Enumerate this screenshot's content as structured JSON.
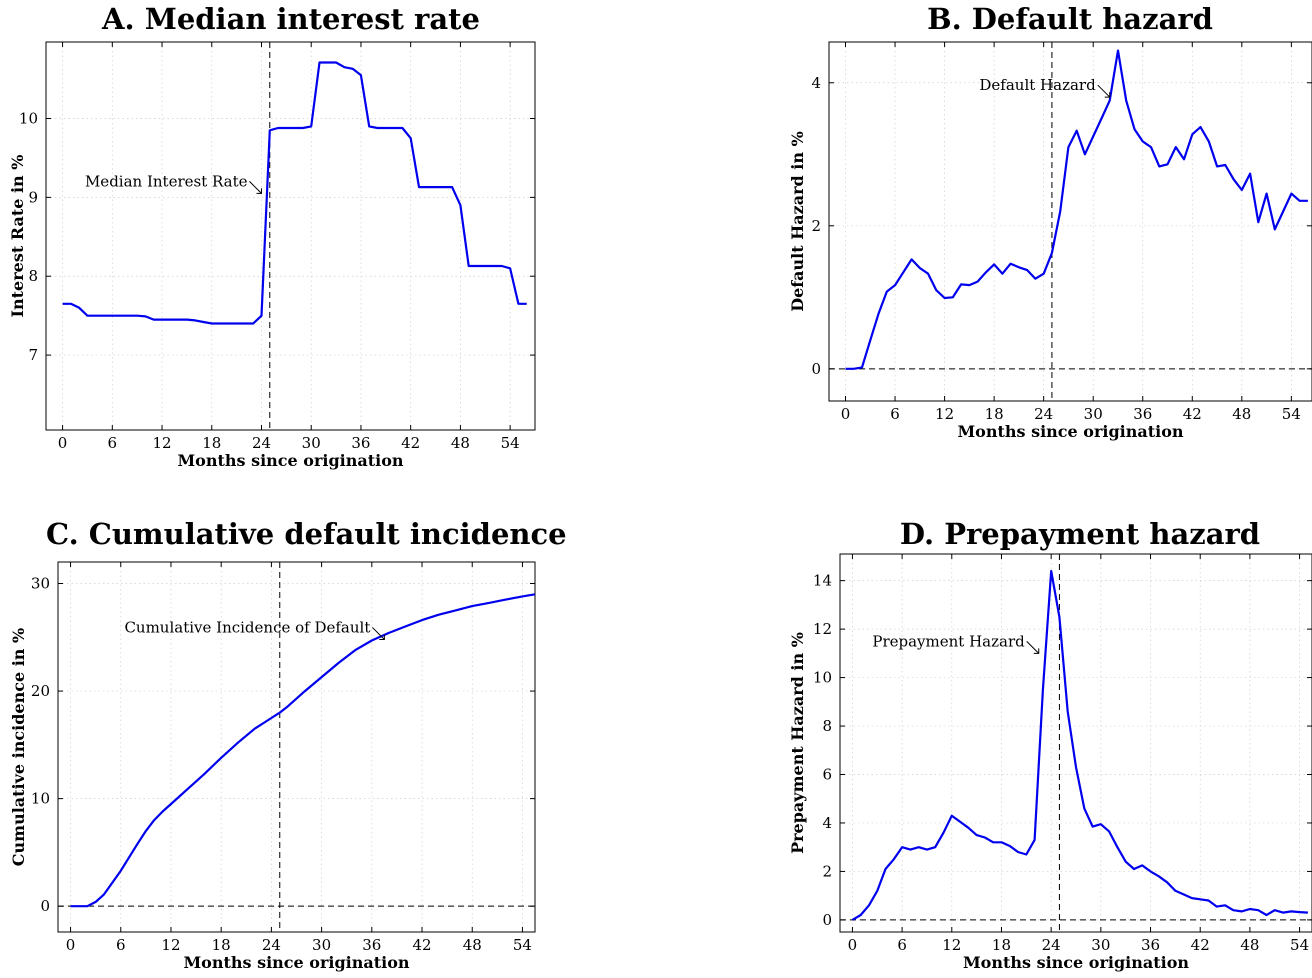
{
  "chart_data": [
    {
      "id": "A",
      "type": "line",
      "title": "A. Median interest rate",
      "xlabel": "Months since origination",
      "ylabel": "Interest Rate in %",
      "xticks": [
        0,
        6,
        12,
        18,
        24,
        30,
        36,
        42,
        48,
        54
      ],
      "yticks": [
        7,
        8,
        9,
        10
      ],
      "xlim": [
        -2,
        57
      ],
      "ylim": [
        6.05,
        10.97
      ],
      "grid": true,
      "vline": 25,
      "zero_line": false,
      "annotation": {
        "text": "Median Interest Rate",
        "target": [
          24.0,
          9.05
        ]
      },
      "series": [
        {
          "color": "#0000ee",
          "x": [
            0,
            1,
            2,
            3,
            4,
            5,
            6,
            7,
            8,
            9,
            10,
            11,
            12,
            13,
            14,
            15,
            16,
            17,
            18,
            19,
            20,
            21,
            22,
            23,
            24,
            25,
            26,
            27,
            28,
            29,
            30,
            31,
            32,
            33,
            34,
            35,
            36,
            37,
            38,
            39,
            40,
            41,
            42,
            43,
            44,
            45,
            46,
            47,
            48,
            49,
            50,
            51,
            52,
            53,
            54,
            55,
            56
          ],
          "y": [
            7.65,
            7.65,
            7.6,
            7.5,
            7.5,
            7.5,
            7.5,
            7.5,
            7.5,
            7.5,
            7.49,
            7.45,
            7.45,
            7.45,
            7.45,
            7.45,
            7.44,
            7.42,
            7.4,
            7.4,
            7.4,
            7.4,
            7.4,
            7.4,
            7.5,
            9.85,
            9.88,
            9.88,
            9.88,
            9.88,
            9.9,
            10.71,
            10.71,
            10.71,
            10.65,
            10.63,
            10.55,
            9.9,
            9.88,
            9.88,
            9.88,
            9.88,
            9.75,
            9.13,
            9.13,
            9.13,
            9.13,
            9.13,
            8.9,
            8.13,
            8.13,
            8.13,
            8.13,
            8.13,
            8.1,
            7.65,
            7.65
          ]
        }
      ]
    },
    {
      "id": "B",
      "type": "line",
      "title": "B. Default hazard",
      "xlabel": "Months since origination",
      "ylabel": "Default Hazard in %",
      "xticks": [
        0,
        6,
        12,
        18,
        24,
        30,
        36,
        42,
        48,
        54
      ],
      "yticks": [
        0,
        2,
        4
      ],
      "xlim": [
        -2,
        56.5
      ],
      "ylim": [
        -0.45,
        4.57
      ],
      "grid": true,
      "vline": 25,
      "zero_line": true,
      "annotation": {
        "text": "Default Hazard",
        "target": [
          32.0,
          3.8
        ]
      },
      "series": [
        {
          "color": "#0000ee",
          "x": [
            0,
            1,
            2,
            3,
            4,
            5,
            6,
            7,
            8,
            9,
            10,
            11,
            12,
            13,
            14,
            15,
            16,
            17,
            18,
            19,
            20,
            21,
            22,
            23,
            24,
            25,
            26,
            27,
            28,
            29,
            30,
            31,
            32,
            33,
            34,
            35,
            36,
            37,
            38,
            39,
            40,
            41,
            42,
            43,
            44,
            45,
            46,
            47,
            48,
            49,
            50,
            51,
            52,
            53,
            54,
            55,
            56
          ],
          "y": [
            0,
            0,
            0.02,
            0.4,
            0.77,
            1.08,
            1.17,
            1.35,
            1.53,
            1.41,
            1.33,
            1.1,
            0.99,
            1.0,
            1.18,
            1.17,
            1.22,
            1.35,
            1.46,
            1.33,
            1.47,
            1.42,
            1.38,
            1.26,
            1.33,
            1.62,
            2.2,
            3.1,
            3.33,
            3.0,
            3.25,
            3.5,
            3.75,
            4.45,
            3.75,
            3.35,
            3.18,
            3.1,
            2.83,
            2.86,
            3.1,
            2.93,
            3.28,
            3.38,
            3.18,
            2.83,
            2.85,
            2.65,
            2.5,
            2.73,
            2.05,
            2.45,
            1.95,
            2.2,
            2.45,
            2.35,
            2.35
          ]
        }
      ]
    },
    {
      "id": "C",
      "type": "line",
      "title": "C. Cumulative default incidence",
      "xlabel": "Months since origination",
      "ylabel": "Cumulative incidence in %",
      "xticks": [
        0,
        6,
        12,
        18,
        24,
        30,
        36,
        42,
        48,
        54
      ],
      "yticks": [
        0,
        10,
        20,
        30
      ],
      "xlim": [
        -1.5,
        55.5
      ],
      "ylim": [
        -2.4,
        32.0
      ],
      "grid": true,
      "vline": 25,
      "zero_line": true,
      "annotation": {
        "text": "Cumulative Incidence of Default",
        "target": [
          37.5,
          24.8
        ]
      },
      "series": [
        {
          "color": "#0000ee",
          "x": [
            0,
            2,
            3,
            4,
            6,
            8,
            9,
            10,
            11,
            12,
            14,
            16,
            18,
            20,
            22,
            24,
            25,
            26,
            28,
            30,
            32,
            34,
            36,
            38,
            40,
            42,
            44,
            46,
            48,
            50,
            52,
            54,
            55.5
          ],
          "y": [
            0,
            0,
            0.4,
            1.1,
            3.3,
            5.8,
            7.0,
            8.0,
            8.8,
            9.5,
            10.9,
            12.3,
            13.8,
            15.2,
            16.5,
            17.5,
            18.0,
            18.6,
            20.0,
            21.3,
            22.6,
            23.8,
            24.7,
            25.4,
            26.0,
            26.6,
            27.1,
            27.5,
            27.9,
            28.2,
            28.5,
            28.8,
            29.0
          ]
        }
      ]
    },
    {
      "id": "D",
      "type": "line",
      "title": "D. Prepayment hazard",
      "xlabel": "Months since origination",
      "ylabel": "Prepayment Hazard in %",
      "xticks": [
        0,
        6,
        12,
        18,
        24,
        30,
        36,
        42,
        48,
        54
      ],
      "yticks": [
        0,
        2,
        4,
        6,
        8,
        10,
        12,
        14
      ],
      "xlim": [
        -1.5,
        55.5
      ],
      "ylim": [
        -0.5,
        15.1
      ],
      "grid": true,
      "vline": 25,
      "zero_line": true,
      "annotation": {
        "text": "Prepayment Hazard",
        "target": [
          22.5,
          11.0
        ]
      },
      "series": [
        {
          "color": "#0000ee",
          "x": [
            0,
            1,
            2,
            3,
            4,
            5,
            6,
            7,
            8,
            9,
            10,
            11,
            12,
            13,
            14,
            15,
            16,
            17,
            18,
            19,
            20,
            21,
            22,
            23,
            24,
            25,
            26,
            27,
            28,
            29,
            30,
            31,
            32,
            33,
            34,
            35,
            36,
            37,
            38,
            39,
            40,
            41,
            42,
            43,
            44,
            45,
            46,
            47,
            48,
            49,
            50,
            51,
            52,
            53,
            54,
            55
          ],
          "y": [
            0,
            0.2,
            0.6,
            1.2,
            2.1,
            2.5,
            3.0,
            2.9,
            3.0,
            2.9,
            3.0,
            3.6,
            4.3,
            4.05,
            3.8,
            3.5,
            3.4,
            3.2,
            3.2,
            3.05,
            2.8,
            2.7,
            3.3,
            9.5,
            14.4,
            12.5,
            8.6,
            6.3,
            4.6,
            3.85,
            3.95,
            3.65,
            3.0,
            2.4,
            2.1,
            2.25,
            2.0,
            1.8,
            1.55,
            1.2,
            1.05,
            0.9,
            0.85,
            0.8,
            0.55,
            0.6,
            0.4,
            0.35,
            0.45,
            0.4,
            0.2,
            0.4,
            0.3,
            0.35,
            0.32,
            0.3
          ]
        }
      ]
    }
  ]
}
